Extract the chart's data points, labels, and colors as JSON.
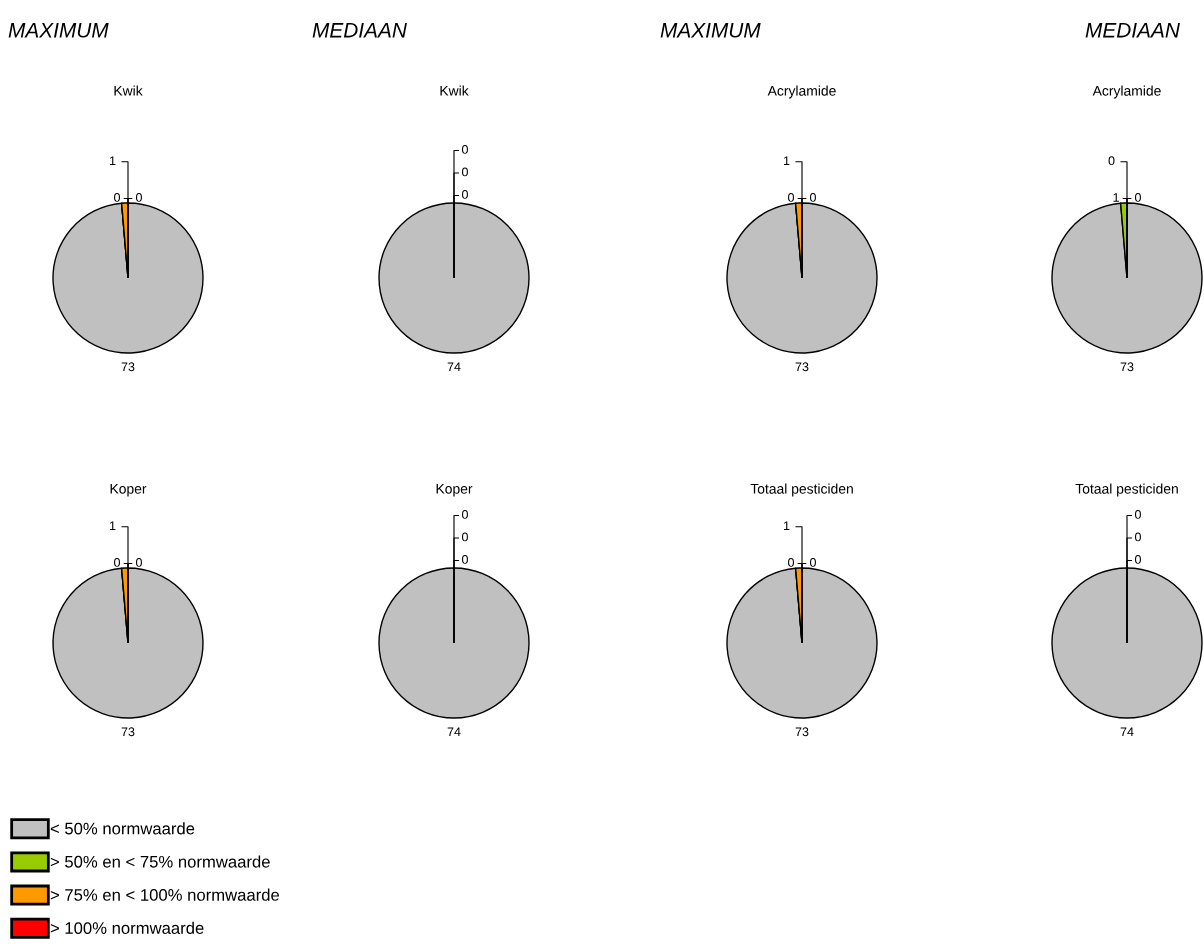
{
  "chart_data": [
    {
      "type": "pie",
      "subtitle": "MAXIMUM",
      "title": "Kwik",
      "categories": [
        null,
        null,
        null,
        null
      ],
      "values": [
        73,
        0,
        1,
        0
      ],
      "value_labels": [
        "73",
        "0",
        "1",
        "0"
      ],
      "colors": [
        "#c0c0c0",
        "#99cc00",
        "#ff9900",
        "#ff0000"
      ]
    },
    {
      "type": "pie",
      "subtitle": "MEDIAAN",
      "title": "Kwik",
      "categories": [
        null,
        null,
        null,
        null
      ],
      "values": [
        74,
        0,
        0,
        0
      ],
      "value_labels": [
        "74",
        "0",
        "0",
        "0"
      ],
      "colors": [
        "#c0c0c0",
        "#99cc00",
        "#ff9900",
        "#ff0000"
      ]
    },
    {
      "type": "pie",
      "subtitle": "MAXIMUM",
      "title": "Acrylamide",
      "categories": [
        null,
        null,
        null,
        null
      ],
      "values": [
        73,
        0,
        1,
        0
      ],
      "value_labels": [
        "73",
        "0",
        "1",
        "0"
      ],
      "colors": [
        "#c0c0c0",
        "#99cc00",
        "#ff9900",
        "#ff0000"
      ]
    },
    {
      "type": "pie",
      "subtitle": "MEDIAAN",
      "title": "Acrylamide",
      "categories": [
        null,
        null,
        null,
        null
      ],
      "values": [
        73,
        1,
        0,
        0
      ],
      "value_labels": [
        "73",
        "1",
        "0",
        "0"
      ],
      "colors": [
        "#c0c0c0",
        "#99cc00",
        "#ff9900",
        "#ff0000"
      ]
    },
    {
      "type": "pie",
      "title": "Koper",
      "categories": [
        "< 50% normwaarde",
        "> 50% en < 75% normwaarde",
        "> 75% en < 100% normwaarde",
        "> 100% normwaarde"
      ],
      "values": [
        73,
        0,
        1,
        0
      ],
      "value_labels": [
        "73",
        "0",
        "1",
        "0"
      ],
      "colors": [
        "#c0c0c0",
        "#99cc00",
        "#ff9900",
        "#ff0000"
      ],
      "legend": "bottom"
    },
    {
      "type": "pie",
      "title": "Koper",
      "categories": [
        null,
        null,
        null,
        null
      ],
      "values": [
        74,
        0,
        0,
        0
      ],
      "value_labels": [
        "74",
        "0",
        "0",
        "0"
      ],
      "colors": [
        "#c0c0c0",
        "#99cc00",
        "#ff9900",
        "#ff0000"
      ]
    },
    {
      "type": "pie",
      "title": "Totaal pesticiden",
      "categories": [
        null,
        null,
        null,
        null
      ],
      "values": [
        73,
        0,
        1,
        0
      ],
      "value_labels": [
        "73",
        "0",
        "1",
        "0"
      ],
      "colors": [
        "#c0c0c0",
        "#99cc00",
        "#ff9900",
        "#ff0000"
      ]
    },
    {
      "type": "pie",
      "title": "Totaal pesticiden",
      "categories": [
        null,
        null,
        null,
        null
      ],
      "values": [
        74,
        0,
        0,
        0
      ],
      "value_labels": [
        "74",
        "0",
        "0",
        "0"
      ],
      "colors": [
        "#c0c0c0",
        "#99cc00",
        "#ff9900",
        "#ff0000"
      ]
    }
  ]
}
